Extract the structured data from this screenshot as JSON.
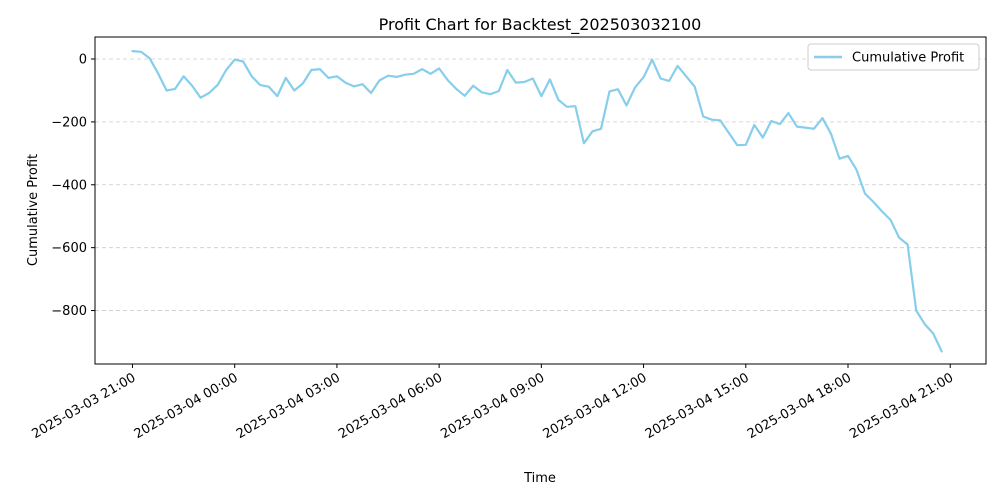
{
  "chart_data": {
    "type": "line",
    "title": "Profit Chart for Backtest_202503032100",
    "xlabel": "Time",
    "ylabel": "Cumulative Profit",
    "grid": "y-dashed",
    "legend_position": "top-right",
    "ylim": [
      -970,
      70
    ],
    "y_ticks": [
      0,
      -200,
      -400,
      -600,
      -800
    ],
    "y_tick_labels": [
      "0",
      "−200",
      "−400",
      "−600",
      "−800"
    ],
    "x_range_hours": [
      -1.1,
      25.05
    ],
    "x_ticks_hours": [
      0,
      3,
      6,
      9,
      12,
      15,
      18,
      21,
      24
    ],
    "x_tick_labels": [
      "2025-03-03 21:00",
      "2025-03-04 00:00",
      "2025-03-04 03:00",
      "2025-03-04 06:00",
      "2025-03-04 09:00",
      "2025-03-04 12:00",
      "2025-03-04 15:00",
      "2025-03-04 18:00",
      "2025-03-04 21:00"
    ],
    "colors": {
      "line": "#87ceeb",
      "grid": "#cccccc"
    },
    "series": [
      {
        "name": "Cumulative Profit",
        "x": [
          0.0,
          0.25,
          0.5,
          0.75,
          1.0,
          1.25,
          1.5,
          1.75,
          2.0,
          2.25,
          2.5,
          2.75,
          3.0,
          3.25,
          3.5,
          3.75,
          4.0,
          4.25,
          4.5,
          4.75,
          5.0,
          5.25,
          5.5,
          5.75,
          6.0,
          6.25,
          6.5,
          6.75,
          7.0,
          7.25,
          7.5,
          7.75,
          8.0,
          8.25,
          8.5,
          8.75,
          9.0,
          9.25,
          9.5,
          9.75,
          10.0,
          10.25,
          10.5,
          10.75,
          11.0,
          11.25,
          11.5,
          11.75,
          12.0,
          12.25,
          12.5,
          12.75,
          13.0,
          13.25,
          13.5,
          13.75,
          14.0,
          14.25,
          14.5,
          14.75,
          15.0,
          15.25,
          15.5,
          15.75,
          16.0,
          16.25,
          16.5,
          16.75,
          17.0,
          17.25,
          17.5,
          17.75,
          18.0,
          18.25,
          18.5,
          18.75,
          19.0,
          19.25,
          19.5,
          19.75,
          20.0,
          20.25,
          20.5,
          20.75,
          21.0,
          21.25,
          21.5,
          21.75,
          22.0,
          22.25,
          22.5,
          22.75,
          23.0,
          23.25,
          23.5,
          23.75
        ],
        "y": [
          25,
          23,
          3,
          -45,
          -100,
          -95,
          -55,
          -85,
          -123,
          -108,
          -82,
          -35,
          -2,
          -8,
          -55,
          -83,
          -88,
          -118,
          -60,
          -100,
          -78,
          -35,
          -32,
          -60,
          -55,
          -75,
          -87,
          -80,
          -108,
          -68,
          -53,
          -57,
          -50,
          -47,
          -32,
          -47,
          -30,
          -67,
          -95,
          -117,
          -85,
          -106,
          -112,
          -102,
          -35,
          -75,
          -73,
          -62,
          -118,
          -65,
          -130,
          -152,
          -150,
          -268,
          -230,
          -222,
          -103,
          -96,
          -148,
          -90,
          -58,
          -2,
          -62,
          -70,
          -22,
          -55,
          -88,
          -183,
          -193,
          -195,
          -235,
          -274,
          -273,
          -210,
          -250,
          -197,
          -207,
          -172,
          -215,
          -218,
          -222,
          -188,
          -238,
          -317,
          -308,
          -352,
          -428,
          -455,
          -485,
          -512,
          -568,
          -590,
          -800,
          -843,
          -873,
          -930
        ]
      }
    ]
  }
}
